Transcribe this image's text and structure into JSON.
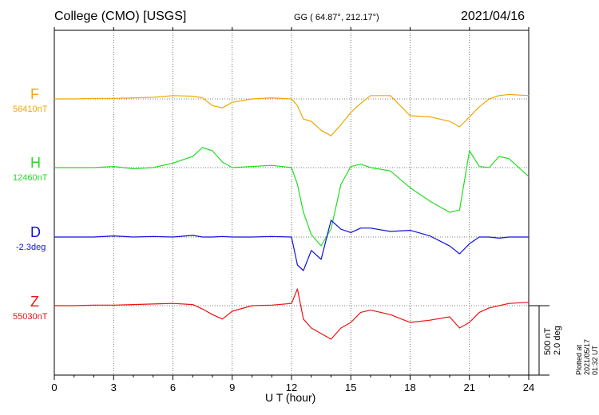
{
  "header": {
    "title": "College (CMO)  [USGS]",
    "coords": "GG ( 64.87°, 212.17°)",
    "date": "2021/04/16"
  },
  "components": [
    {
      "name": "F",
      "baseline": "56410nT",
      "color": "#f0a800"
    },
    {
      "name": "H",
      "baseline": "12460nT",
      "color": "#22dd22"
    },
    {
      "name": "D",
      "baseline": "-2.3deg",
      "color": "#1010dd"
    },
    {
      "name": "Z",
      "baseline": "55030nT",
      "color": "#ee1111"
    }
  ],
  "scale_label": [
    "500 nT",
    "2.0 deg"
  ],
  "footer": "Plotted at 2021/05/17 01:32 UT",
  "chart_data": {
    "type": "line",
    "title": "College (CMO)  [USGS]",
    "xlabel": "U T (hour)",
    "ylabel": "",
    "x_ticks": [
      "0",
      "3",
      "6",
      "9",
      "12",
      "15",
      "18",
      "21",
      "24"
    ],
    "xlim": [
      0,
      24
    ],
    "grid": true,
    "units": "nT (F, H, Z); deg (D)",
    "x": [
      0,
      1,
      2,
      3,
      4,
      5,
      6,
      7,
      7.5,
      8,
      8.5,
      9,
      10,
      11,
      12,
      12.3,
      12.6,
      13,
      13.5,
      14,
      14.5,
      15,
      15.5,
      16,
      17,
      18,
      19,
      20,
      20.5,
      21,
      21.5,
      22,
      22.5,
      23,
      24
    ],
    "series": [
      {
        "name": "F",
        "values": [
          0,
          0,
          5,
          5,
          10,
          15,
          30,
          25,
          10,
          -60,
          -80,
          -30,
          0,
          10,
          0,
          -60,
          -180,
          -200,
          -280,
          -330,
          -230,
          -120,
          -40,
          30,
          30,
          -150,
          -160,
          -200,
          -250,
          -160,
          -70,
          0,
          30,
          40,
          30
        ]
      },
      {
        "name": "H",
        "values": [
          0,
          0,
          0,
          10,
          -10,
          0,
          40,
          100,
          180,
          150,
          50,
          0,
          10,
          20,
          0,
          -150,
          -400,
          -600,
          -700,
          -550,
          -150,
          10,
          30,
          0,
          -30,
          -180,
          -300,
          -400,
          -380,
          150,
          10,
          0,
          100,
          80,
          -80
        ]
      },
      {
        "name": "D",
        "values": [
          0,
          0,
          0,
          10,
          0,
          5,
          0,
          15,
          0,
          0,
          5,
          0,
          0,
          5,
          0,
          -250,
          -300,
          -120,
          -200,
          150,
          70,
          40,
          80,
          80,
          50,
          60,
          10,
          -80,
          -150,
          -60,
          0,
          0,
          -10,
          0,
          0
        ]
      },
      {
        "name": "Z",
        "values": [
          0,
          0,
          5,
          5,
          10,
          15,
          20,
          10,
          -30,
          -80,
          -120,
          -50,
          0,
          5,
          20,
          150,
          -120,
          -200,
          -250,
          -300,
          -200,
          -150,
          -60,
          -40,
          -80,
          -150,
          -130,
          -100,
          -200,
          -150,
          -60,
          -20,
          0,
          20,
          30
        ]
      }
    ]
  }
}
